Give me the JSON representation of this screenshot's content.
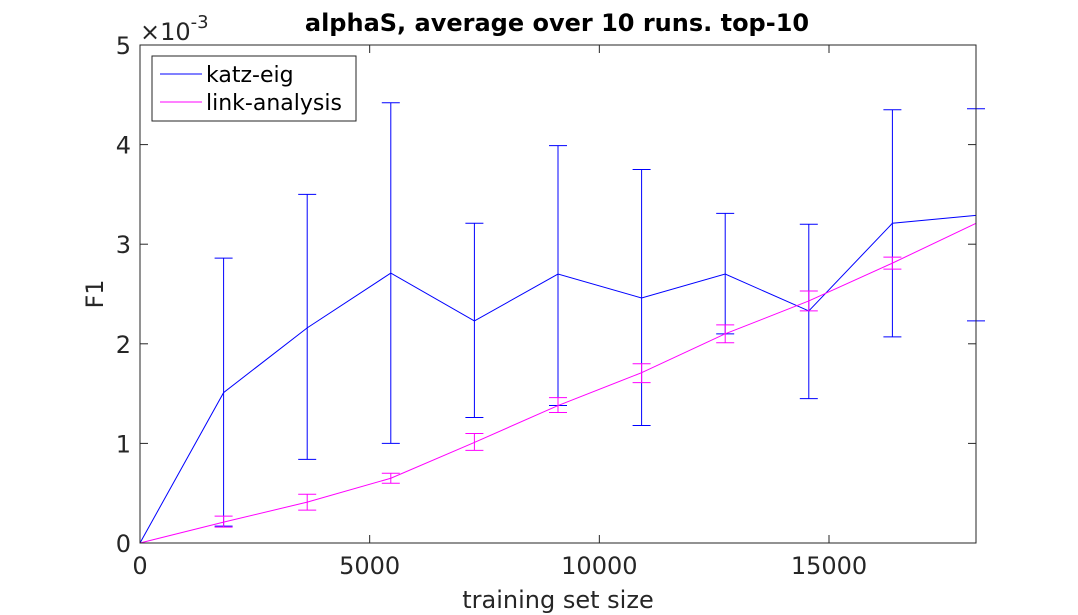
{
  "chart_data": {
    "type": "line",
    "title": "alphaS, average over 10 runs. top-10",
    "xlabel": "training set size",
    "ylabel": "F1",
    "y_multiplier_label": "×10",
    "y_multiplier_exponent": "-3",
    "xlim": [
      0,
      18200
    ],
    "ylim": [
      0,
      5
    ],
    "x_ticks": [
      0,
      5000,
      10000,
      15000
    ],
    "x_tick_labels": [
      "0",
      "5000",
      "10000",
      "15000"
    ],
    "y_ticks": [
      0,
      1,
      2,
      3,
      4,
      5
    ],
    "y_tick_labels": [
      "0",
      "1",
      "2",
      "3",
      "4",
      "5"
    ],
    "legend_position": "top-left",
    "grid": false,
    "x": [
      0,
      1820,
      3640,
      5460,
      7280,
      9100,
      10920,
      12740,
      14560,
      16380,
      18200
    ],
    "series": [
      {
        "name": "katz-eig",
        "color": "#0000ff",
        "values": [
          0,
          1.51,
          2.16,
          2.71,
          2.23,
          2.7,
          2.46,
          2.7,
          2.33,
          3.21,
          3.29
        ],
        "error_low": [
          null,
          0.17,
          0.84,
          1.0,
          1.26,
          1.38,
          1.18,
          2.1,
          1.45,
          2.07,
          2.23
        ],
        "error_high": [
          null,
          2.86,
          3.5,
          4.42,
          3.21,
          3.99,
          3.75,
          3.31,
          3.2,
          4.35,
          4.36
        ]
      },
      {
        "name": "link-analysis",
        "color": "#ff00ff",
        "values": [
          0,
          0.21,
          0.41,
          0.65,
          1.01,
          1.38,
          1.71,
          2.1,
          2.43,
          2.81,
          3.21
        ],
        "error_low": [
          null,
          0.16,
          0.33,
          0.6,
          0.93,
          1.31,
          1.61,
          2.01,
          2.33,
          2.75,
          null
        ],
        "error_high": [
          null,
          0.27,
          0.49,
          0.7,
          1.1,
          1.46,
          1.8,
          2.19,
          2.53,
          2.87,
          null
        ]
      }
    ]
  }
}
